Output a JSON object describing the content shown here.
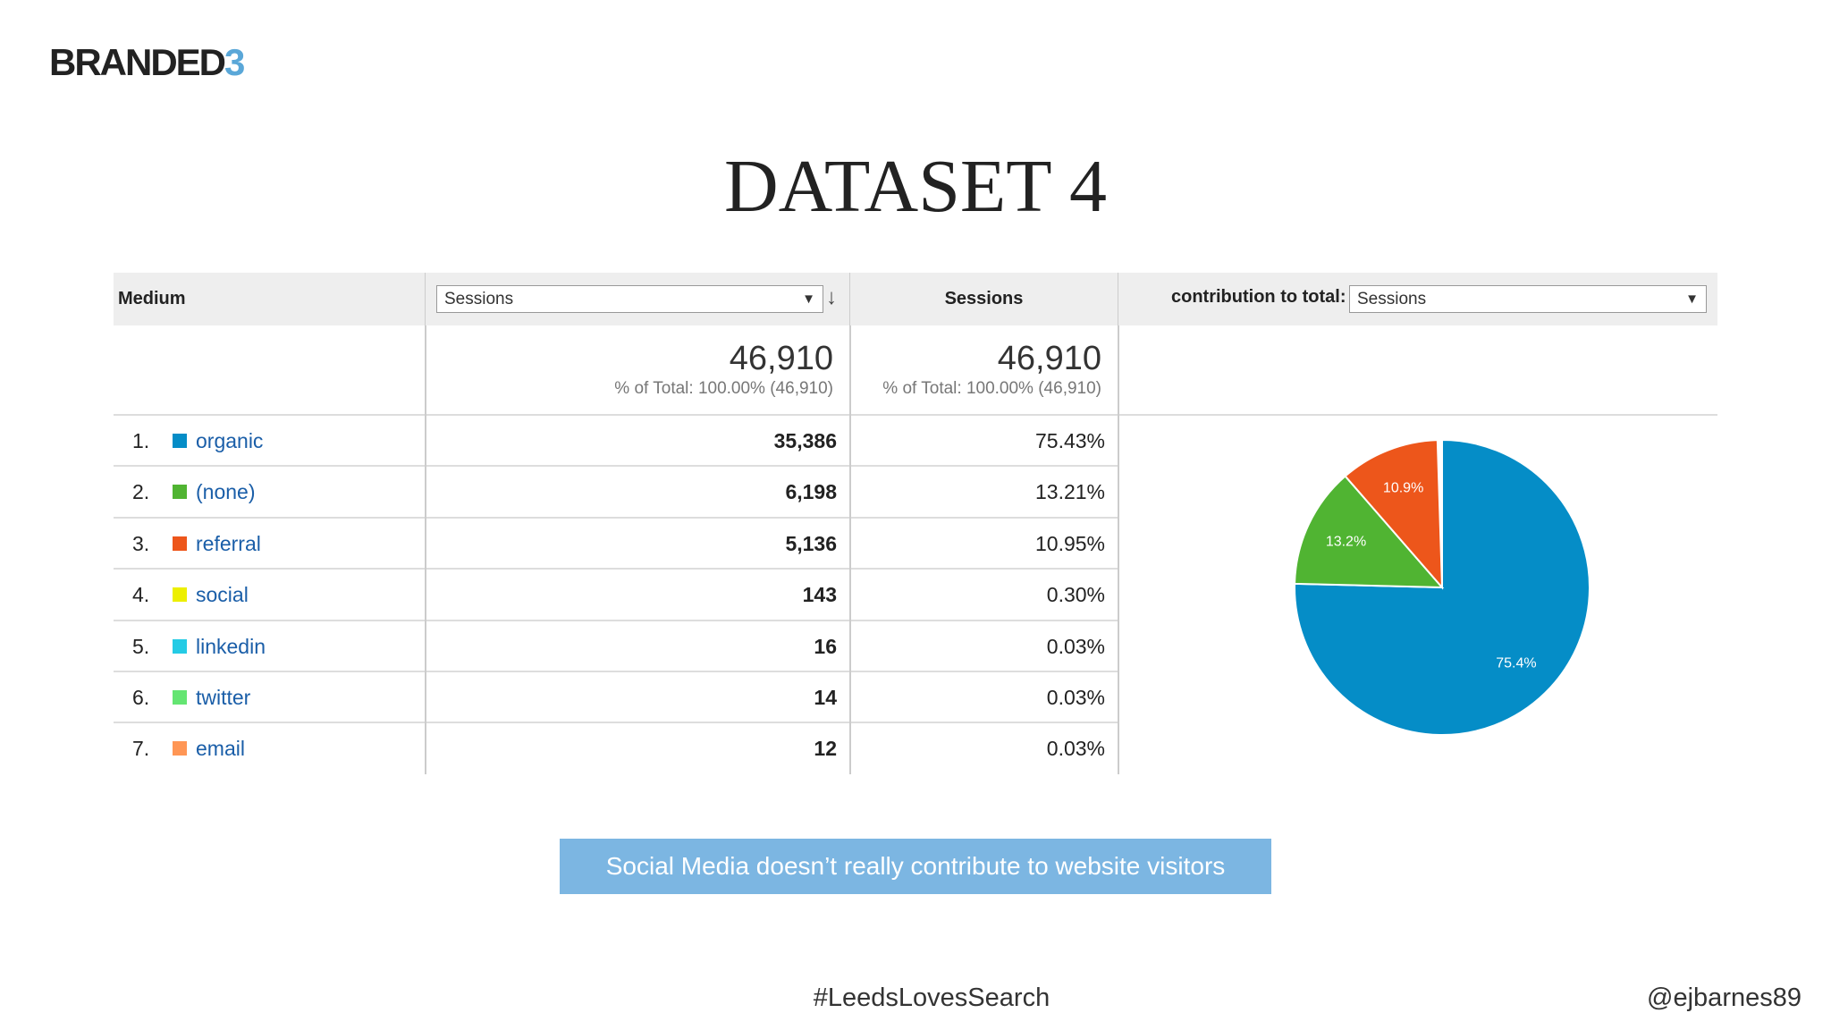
{
  "logo": {
    "text": "BRANDED",
    "accent": "3"
  },
  "title": "DATASET 4",
  "table": {
    "headers": {
      "medium": "Medium",
      "primary_select": "Sessions",
      "sessions": "Sessions",
      "contribution_label": "contribution to total:",
      "contribution_select": "Sessions"
    },
    "totals": [
      {
        "value": "46,910",
        "note": "% of Total: 100.00% (46,910)"
      },
      {
        "value": "46,910",
        "note": "% of Total: 100.00% (46,910)"
      }
    ],
    "rows": [
      {
        "rank": "1.",
        "medium": "organic",
        "color": "#058dc7",
        "sessions": "35,386",
        "share": "75.43%"
      },
      {
        "rank": "2.",
        "medium": "(none)",
        "color": "#50b432",
        "sessions": "6,198",
        "share": "13.21%"
      },
      {
        "rank": "3.",
        "medium": "referral",
        "color": "#ed561b",
        "sessions": "5,136",
        "share": "10.95%"
      },
      {
        "rank": "4.",
        "medium": "social",
        "color": "#edef00",
        "sessions": "143",
        "share": "0.30%"
      },
      {
        "rank": "5.",
        "medium": "linkedin",
        "color": "#24cbe5",
        "sessions": "16",
        "share": "0.03%"
      },
      {
        "rank": "6.",
        "medium": "twitter",
        "color": "#64e572",
        "sessions": "14",
        "share": "0.03%"
      },
      {
        "rank": "7.",
        "medium": "email",
        "color": "#ff9655",
        "sessions": "12",
        "share": "0.03%"
      }
    ]
  },
  "chart_data": {
    "type": "pie",
    "values": [
      75.4,
      13.2,
      10.9
    ],
    "value_labels": [
      "75.4%",
      "13.2%",
      "10.9%"
    ],
    "colors": [
      "#058dc7",
      "#50b432",
      "#ed561b"
    ]
  },
  "callout": "Social Media doesn’t really contribute to website visitors",
  "footer": {
    "hashtag": "#LeedsLovesSearch",
    "handle": "@ejbarnes89"
  }
}
